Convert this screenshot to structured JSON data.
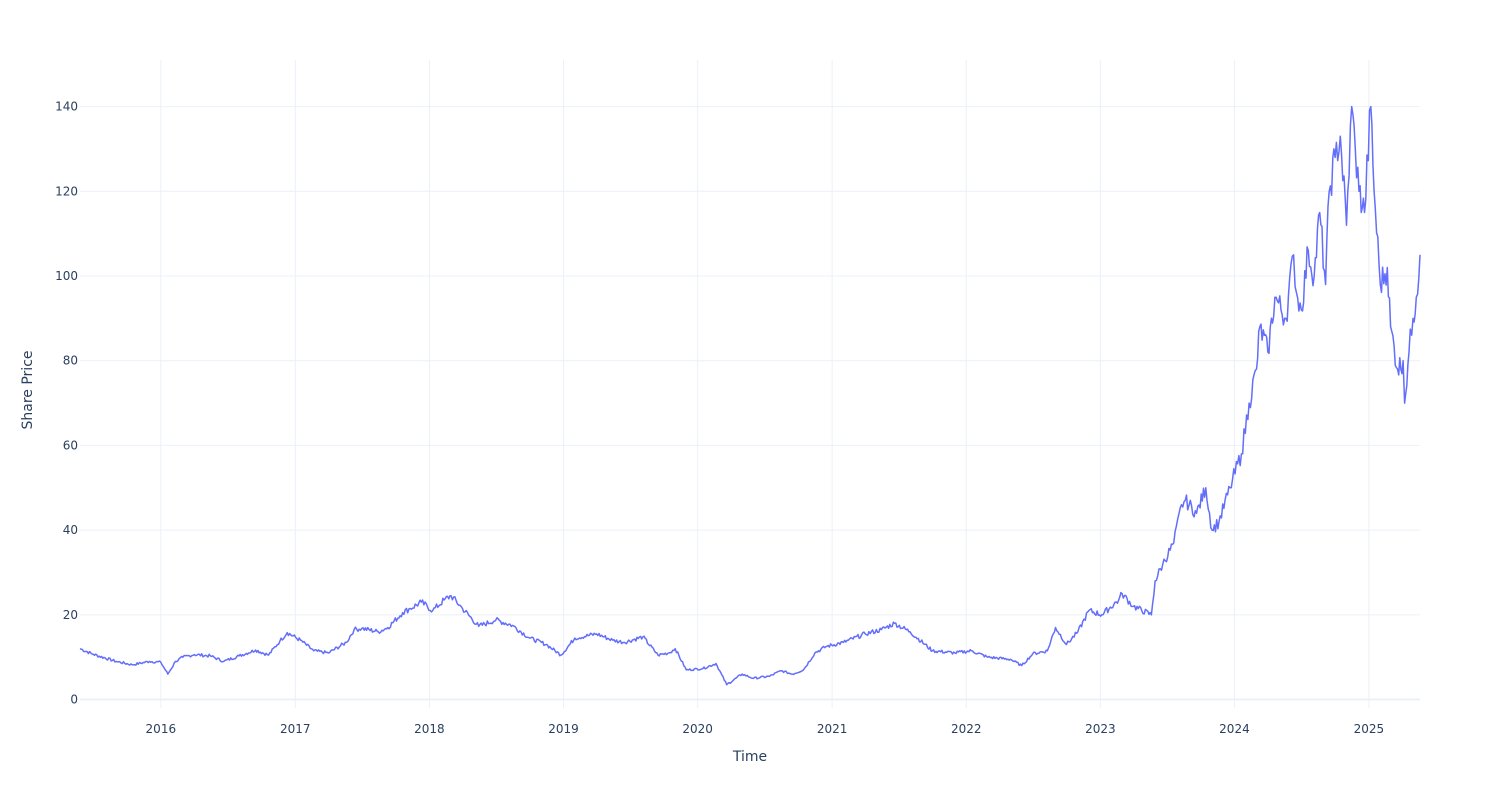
{
  "chart_data": {
    "type": "line",
    "title": "",
    "xlabel": "Time",
    "ylabel": "Share Price",
    "grid": true,
    "colors": {
      "series": "#636efa",
      "grid": "#ebf0f8",
      "text": "#2a3f5f"
    },
    "xlim": [
      "2015-05-26",
      "2025-05-20"
    ],
    "ylim": [
      -2,
      151
    ],
    "x_ticks": [
      "2016",
      "2017",
      "2018",
      "2019",
      "2020",
      "2021",
      "2022",
      "2023",
      "2024",
      "2025"
    ],
    "y_ticks": [
      0,
      20,
      40,
      60,
      80,
      100,
      120,
      140
    ],
    "series": [
      {
        "x": [
          "2015-05-26",
          "2015-07-01",
          "2015-09-01",
          "2015-10-15",
          "2015-12-01",
          "2016-01-01",
          "2016-01-20",
          "2016-02-10",
          "2016-03-01",
          "2016-04-01",
          "2016-05-15",
          "2016-06-20",
          "2016-08-01",
          "2016-09-15",
          "2016-10-20",
          "2016-11-20",
          "2016-12-10",
          "2017-01-15",
          "2017-02-20",
          "2017-04-01",
          "2017-05-20",
          "2017-06-10",
          "2017-07-01",
          "2017-08-15",
          "2017-09-10",
          "2017-10-20",
          "2017-11-10",
          "2017-12-10",
          "2018-01-10",
          "2018-02-10",
          "2018-03-01",
          "2018-04-01",
          "2018-05-15",
          "2018-07-01",
          "2018-08-15",
          "2018-10-01",
          "2018-11-15",
          "2018-12-25",
          "2019-02-01",
          "2019-04-01",
          "2019-05-15",
          "2019-06-15",
          "2019-08-05",
          "2019-09-15",
          "2019-10-15",
          "2019-11-01",
          "2019-12-01",
          "2020-01-15",
          "2020-02-20",
          "2020-03-20",
          "2020-05-01",
          "2020-06-01",
          "2020-07-15",
          "2020-08-15",
          "2020-09-15",
          "2020-10-15",
          "2020-11-15",
          "2020-12-15",
          "2021-02-01",
          "2021-04-01",
          "2021-05-15",
          "2021-06-20",
          "2021-08-01",
          "2021-10-01",
          "2021-12-01",
          "2022-01-15",
          "2022-03-01",
          "2022-05-01",
          "2022-06-01",
          "2022-07-01",
          "2022-08-10",
          "2022-09-01",
          "2022-10-01",
          "2022-11-01",
          "2022-12-01",
          "2023-01-05",
          "2023-02-20",
          "2023-03-01",
          "2023-04-01",
          "2023-05-20",
          "2023-05-30",
          "2023-06-20",
          "2023-07-20",
          "2023-08-10",
          "2023-08-20",
          "2023-09-20",
          "2023-10-15",
          "2023-11-01",
          "2023-11-20",
          "2023-12-20",
          "2024-01-20",
          "2024-02-10",
          "2024-03-01",
          "2024-03-10",
          "2024-04-01",
          "2024-04-20",
          "2024-05-20",
          "2024-06-10",
          "2024-06-18",
          "2024-07-01",
          "2024-07-20",
          "2024-08-05",
          "2024-08-20",
          "2024-09-05",
          "2024-09-15",
          "2024-10-01",
          "2024-10-15",
          "2024-11-01",
          "2024-11-15",
          "2024-11-25",
          "2024-12-05",
          "2024-12-20",
          "2025-01-06",
          "2025-01-15",
          "2025-02-01",
          "2025-02-20",
          "2025-03-01",
          "2025-03-20",
          "2025-04-04",
          "2025-04-08",
          "2025-04-20",
          "2025-05-01",
          "2025-05-10",
          "2025-05-20"
        ],
        "y": [
          12.0,
          10.7,
          9.0,
          8.2,
          9.0,
          8.8,
          6.0,
          9.0,
          10.0,
          10.6,
          10.3,
          9.0,
          10.3,
          11.7,
          10.5,
          13.8,
          15.8,
          14.0,
          11.5,
          11.0,
          13.5,
          16.5,
          16.8,
          16.0,
          17.0,
          20.5,
          21.5,
          23.0,
          21.0,
          23.5,
          24.5,
          21.5,
          17.3,
          18.8,
          17.5,
          14.5,
          13.0,
          10.5,
          14.5,
          15.5,
          14.0,
          13.5,
          14.8,
          10.5,
          11.0,
          12.0,
          7.0,
          7.3,
          8.5,
          3.5,
          6.0,
          5.0,
          5.5,
          6.8,
          6.0,
          7.0,
          11.0,
          12.5,
          13.5,
          15.5,
          16.5,
          18.0,
          16.0,
          11.5,
          11.0,
          11.5,
          10.0,
          9.5,
          8.0,
          10.8,
          11.5,
          17.0,
          13.0,
          16.0,
          21.0,
          20.0,
          23.5,
          25.0,
          22.0,
          20.0,
          28.0,
          32.0,
          37.0,
          46.0,
          47.0,
          44.0,
          50.0,
          40.0,
          42.0,
          50.0,
          58.0,
          70.0,
          78.0,
          88.0,
          82.0,
          95.0,
          90.0,
          105.0,
          96.0,
          92.0,
          106.0,
          100.0,
          115.0,
          98.0,
          120.0,
          128.0,
          133.0,
          112.0,
          140.0,
          130.0,
          120.0,
          115.0,
          140.0,
          120.0,
          98.0,
          102.0,
          88.0,
          78.0,
          80.0,
          70.0,
          82.0,
          90.0,
          95.0,
          105.0
        ]
      }
    ]
  }
}
